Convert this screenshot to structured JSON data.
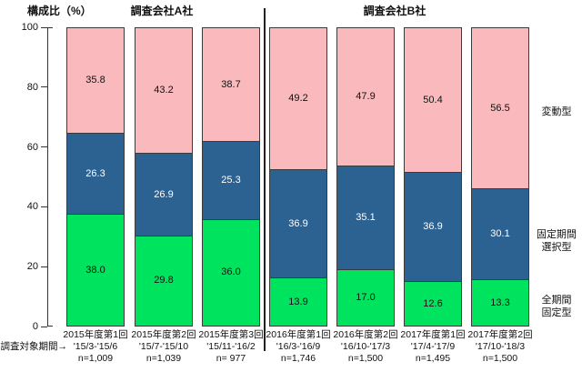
{
  "chart_data": {
    "type": "bar",
    "stacked": true,
    "orientation": "vertical",
    "ylabel": "構成比（%）",
    "ylim": [
      0,
      100
    ],
    "yticks": [
      "100",
      "80",
      "60",
      "40",
      "20",
      "0"
    ],
    "grid": false,
    "legend_position": "right",
    "group_headers": [
      "調査会社A社",
      "調査会社B社"
    ],
    "group_split_after_category": 3,
    "x_axis_prefix": "調査対象期間→",
    "categories": [
      {
        "round": "2015年度第1回",
        "period": "'15/3-'15/6",
        "n": "n=1,009",
        "group": "A"
      },
      {
        "round": "2015年度第2回",
        "period": "'15/7-'15/10",
        "n": "n=1,039",
        "group": "A"
      },
      {
        "round": "2015年度第3回",
        "period": "'15/11-'16/2",
        "n": "n= 977",
        "group": "A"
      },
      {
        "round": "2016年度第1回",
        "period": "'16/3-'16/9",
        "n": "n=1,746",
        "group": "B"
      },
      {
        "round": "2016年度第2回",
        "period": "'16/10-'17/3",
        "n": "n=1,500",
        "group": "B"
      },
      {
        "round": "2017年度第1回",
        "period": "'17/4-'17/9",
        "n": "n=1,495",
        "group": "B"
      },
      {
        "round": "2017年度第2回",
        "period": "'17/10-'18/3",
        "n": "n=1,500",
        "group": "B"
      }
    ],
    "series": [
      {
        "name": "変動型",
        "label_lines": [
          "変動型"
        ],
        "color": "#FAB9BD",
        "text_color": "#111111",
        "values": [
          "35.8",
          "43.2",
          "38.7",
          "49.2",
          "47.9",
          "50.4",
          "56.5"
        ]
      },
      {
        "name": "固定期間選択型",
        "label_lines": [
          "固定期間",
          "選択型"
        ],
        "color": "#2C6292",
        "text_color": "#FFFFFF",
        "values": [
          "26.3",
          "26.9",
          "25.3",
          "36.9",
          "35.1",
          "36.9",
          "30.1"
        ]
      },
      {
        "name": "全期間固定型",
        "label_lines": [
          "全期間",
          "固定型"
        ],
        "color": "#00E35F",
        "text_color": "#111111",
        "values": [
          "38.0",
          "29.8",
          "36.0",
          "13.9",
          "17.0",
          "12.6",
          "13.3"
        ]
      }
    ]
  }
}
